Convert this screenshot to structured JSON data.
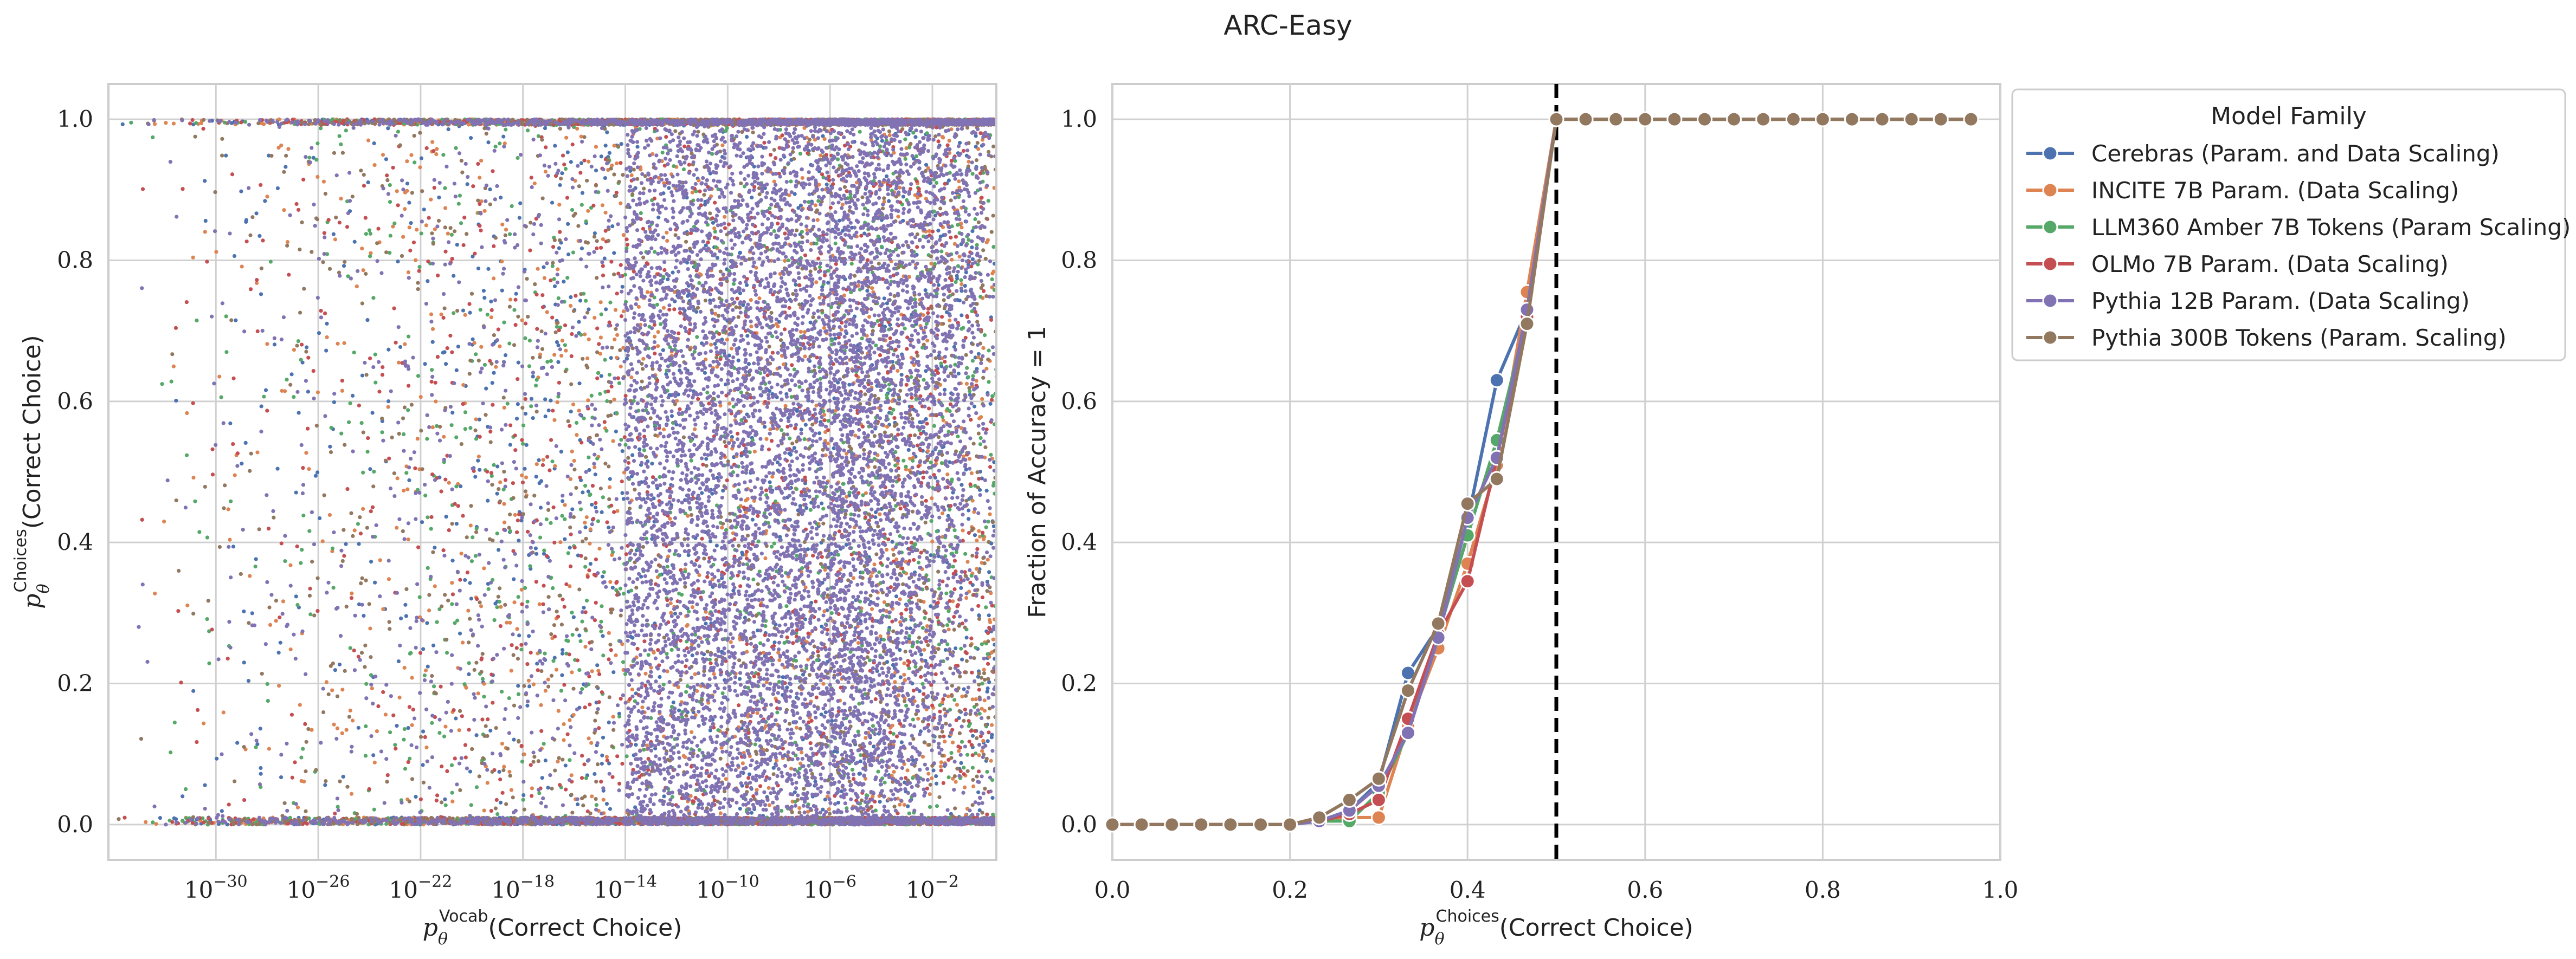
{
  "figure": {
    "title": "ARC-Easy"
  },
  "colors": {
    "Cerebras": "#4c72b0",
    "INCITE": "#dd8452",
    "Amber": "#55a868",
    "OLMo": "#c44e52",
    "Pythia12B": "#8172b3",
    "Pythia300B": "#937860"
  },
  "chart_data": [
    {
      "type": "scatter",
      "xlabel": "p_θ^Vocab(Correct Choice)",
      "xlabel_main": "p",
      "xlabel_sub": "θ",
      "xlabel_sup": "Vocab",
      "xlabel_rest": "(Correct Choice)",
      "ylabel": "p_θ^Choices(Correct Choice)",
      "ylabel_main": "p",
      "ylabel_sub": "θ",
      "ylabel_sup": "Choices",
      "ylabel_rest": "(Correct Choice)",
      "xscale": "log",
      "xlim_exp": [
        -34.2,
        0.5
      ],
      "ylim": [
        -0.05,
        1.05
      ],
      "x_ticks_exp": [
        -30,
        -26,
        -22,
        -18,
        -14,
        -10,
        -6,
        -2
      ],
      "x_tick_base": "10",
      "x_tick_exps": [
        "−30",
        "−26",
        "−22",
        "−18",
        "−14",
        "−10",
        "−6",
        "−2"
      ],
      "y_ticks": [
        0.0,
        0.2,
        0.4,
        0.6,
        0.8,
        1.0
      ],
      "y_tick_labels": [
        "0.0",
        "0.2",
        "0.4",
        "0.6",
        "0.8",
        "1.0"
      ],
      "grid": true,
      "series_order": [
        "Cerebras",
        "INCITE",
        "Amber",
        "OLMo",
        "Pythia300B",
        "Pythia12B"
      ]
    },
    {
      "type": "line",
      "xlabel": "p_θ^Choices(Correct Choice)",
      "xlabel_main": "p",
      "xlabel_sub": "θ",
      "xlabel_sup": "Choices",
      "xlabel_rest": "(Correct Choice)",
      "ylabel": "Fraction of Accuracy = 1",
      "xlim": [
        0.0,
        1.0
      ],
      "ylim": [
        -0.05,
        1.05
      ],
      "x_ticks": [
        0.0,
        0.2,
        0.4,
        0.6,
        0.8,
        1.0
      ],
      "x_tick_labels": [
        "0.0",
        "0.2",
        "0.4",
        "0.6",
        "0.8",
        "1.0"
      ],
      "y_ticks": [
        0.0,
        0.2,
        0.4,
        0.6,
        0.8,
        1.0
      ],
      "y_tick_labels": [
        "0.0",
        "0.2",
        "0.4",
        "0.6",
        "0.8",
        "1.0"
      ],
      "threshold_x": 0.5,
      "grid": true,
      "x": [
        0.0,
        0.033,
        0.067,
        0.1,
        0.133,
        0.167,
        0.2,
        0.233,
        0.267,
        0.3,
        0.333,
        0.367,
        0.4,
        0.433,
        0.467,
        0.5,
        0.533,
        0.567,
        0.6,
        0.633,
        0.667,
        0.7,
        0.733,
        0.767,
        0.8,
        0.833,
        0.867,
        0.9,
        0.933,
        0.967
      ],
      "series": [
        {
          "key": "Cerebras",
          "name": "Cerebras (Param. and Data Scaling)",
          "values": [
            0,
            0,
            0,
            0,
            0,
            0,
            0,
            0.005,
            0.02,
            0.06,
            0.215,
            0.28,
            0.43,
            0.63,
            0.73,
            1,
            1,
            1,
            1,
            1,
            1,
            1,
            1,
            1,
            1,
            1,
            1,
            1,
            1,
            1
          ]
        },
        {
          "key": "INCITE",
          "name": "INCITE 7B Param. (Data Scaling)",
          "values": [
            0,
            0,
            0,
            0,
            0,
            0,
            0,
            0.005,
            0.01,
            0.01,
            0.14,
            0.25,
            0.37,
            0.51,
            0.755,
            1,
            1,
            1,
            1,
            1,
            1,
            1,
            1,
            1,
            1,
            1,
            1,
            1,
            1,
            1
          ]
        },
        {
          "key": "Amber",
          "name": "LLM360 Amber 7B Tokens (Param Scaling)",
          "values": [
            0,
            0,
            0,
            0,
            0,
            0,
            0,
            0.005,
            0.005,
            0.045,
            0.13,
            0.27,
            0.41,
            0.545,
            0.72,
            1,
            1,
            1,
            1,
            1,
            1,
            1,
            1,
            1,
            1,
            1,
            1,
            1,
            1,
            1
          ]
        },
        {
          "key": "OLMo",
          "name": "OLMo 7B Param. (Data Scaling)",
          "values": [
            0,
            0,
            0,
            0,
            0,
            0,
            0,
            0.005,
            0.015,
            0.035,
            0.15,
            0.27,
            0.345,
            0.52,
            0.72,
            1,
            1,
            1,
            1,
            1,
            1,
            1,
            1,
            1,
            1,
            1,
            1,
            1,
            1,
            1
          ]
        },
        {
          "key": "Pythia12B",
          "name": "Pythia 12B Param. (Data Scaling)",
          "values": [
            0,
            0,
            0,
            0,
            0,
            0,
            0,
            0.005,
            0.02,
            0.055,
            0.13,
            0.265,
            0.435,
            0.52,
            0.73,
            1,
            1,
            1,
            1,
            1,
            1,
            1,
            1,
            1,
            1,
            1,
            1,
            1,
            1,
            1
          ]
        },
        {
          "key": "Pythia300B",
          "name": "Pythia 300B Tokens (Param. Scaling)",
          "values": [
            0,
            0,
            0,
            0,
            0,
            0,
            0,
            0.01,
            0.035,
            0.065,
            0.19,
            0.285,
            0.455,
            0.49,
            0.71,
            1,
            1,
            1,
            1,
            1,
            1,
            1,
            1,
            1,
            1,
            1,
            1,
            1,
            1,
            1
          ]
        }
      ],
      "legend": {
        "title": "Model Family",
        "placement": "outside-upper-right"
      }
    }
  ]
}
